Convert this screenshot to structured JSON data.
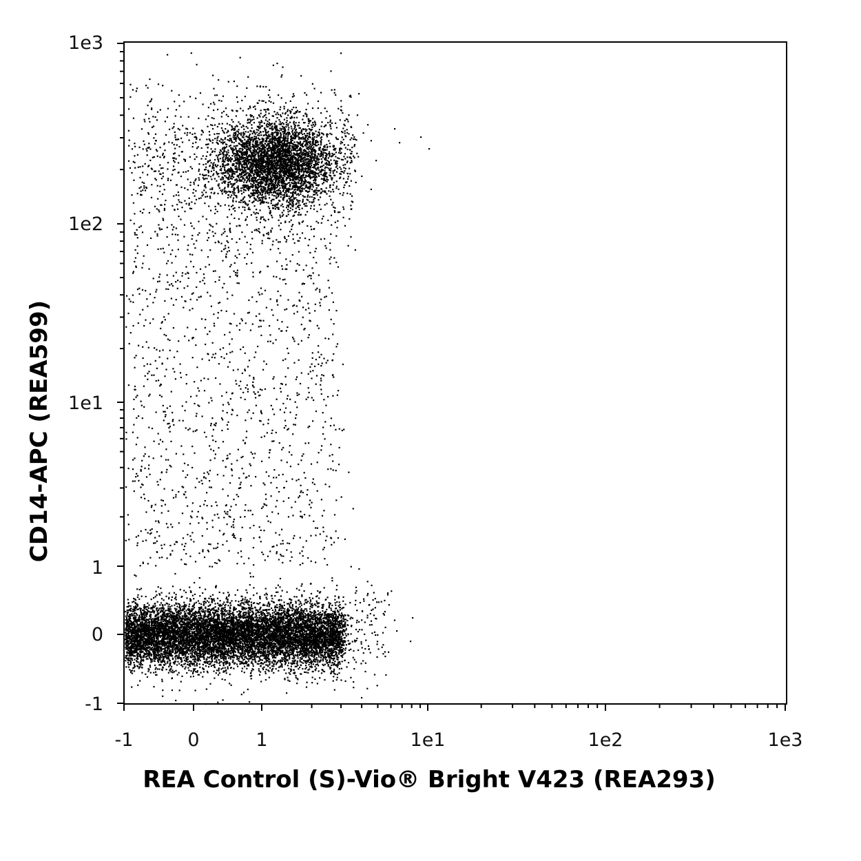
{
  "chart_data": {
    "type": "scatter",
    "title": "",
    "xlabel": "REA Control (S)-Vio® Bright V423 (REA293)",
    "ylabel": "CD14-APC (REA599)",
    "x_scale": "biexponential (linear near zero, log above)",
    "y_scale": "biexponential (linear near zero, log above)",
    "xlim": [
      -1,
      1000
    ],
    "ylim": [
      -1,
      1000
    ],
    "x_ticks": [
      "-1",
      "0",
      "1",
      "1e1",
      "1e2",
      "1e3"
    ],
    "y_ticks": [
      "-1",
      "0",
      "1",
      "1e1",
      "1e2",
      "1e3"
    ],
    "grid": false,
    "legend": "none",
    "point_color": "#000000",
    "populations": [
      {
        "center": {
          "x": 0.3,
          "y": 0.0
        },
        "x_range": [
          -1,
          3
        ],
        "y_range": [
          -0.5,
          0.7
        ],
        "density": "very high"
      },
      {
        "center": {
          "x": 1.2,
          "y": 220
        },
        "x_range": [
          -1,
          4
        ],
        "y_range": [
          60,
          500
        ],
        "density": "high"
      },
      {
        "center": {
          "x": 0.8,
          "y": 10
        },
        "x_range": [
          -1,
          3
        ],
        "y_range": [
          1,
          100
        ],
        "density": "low"
      }
    ]
  }
}
